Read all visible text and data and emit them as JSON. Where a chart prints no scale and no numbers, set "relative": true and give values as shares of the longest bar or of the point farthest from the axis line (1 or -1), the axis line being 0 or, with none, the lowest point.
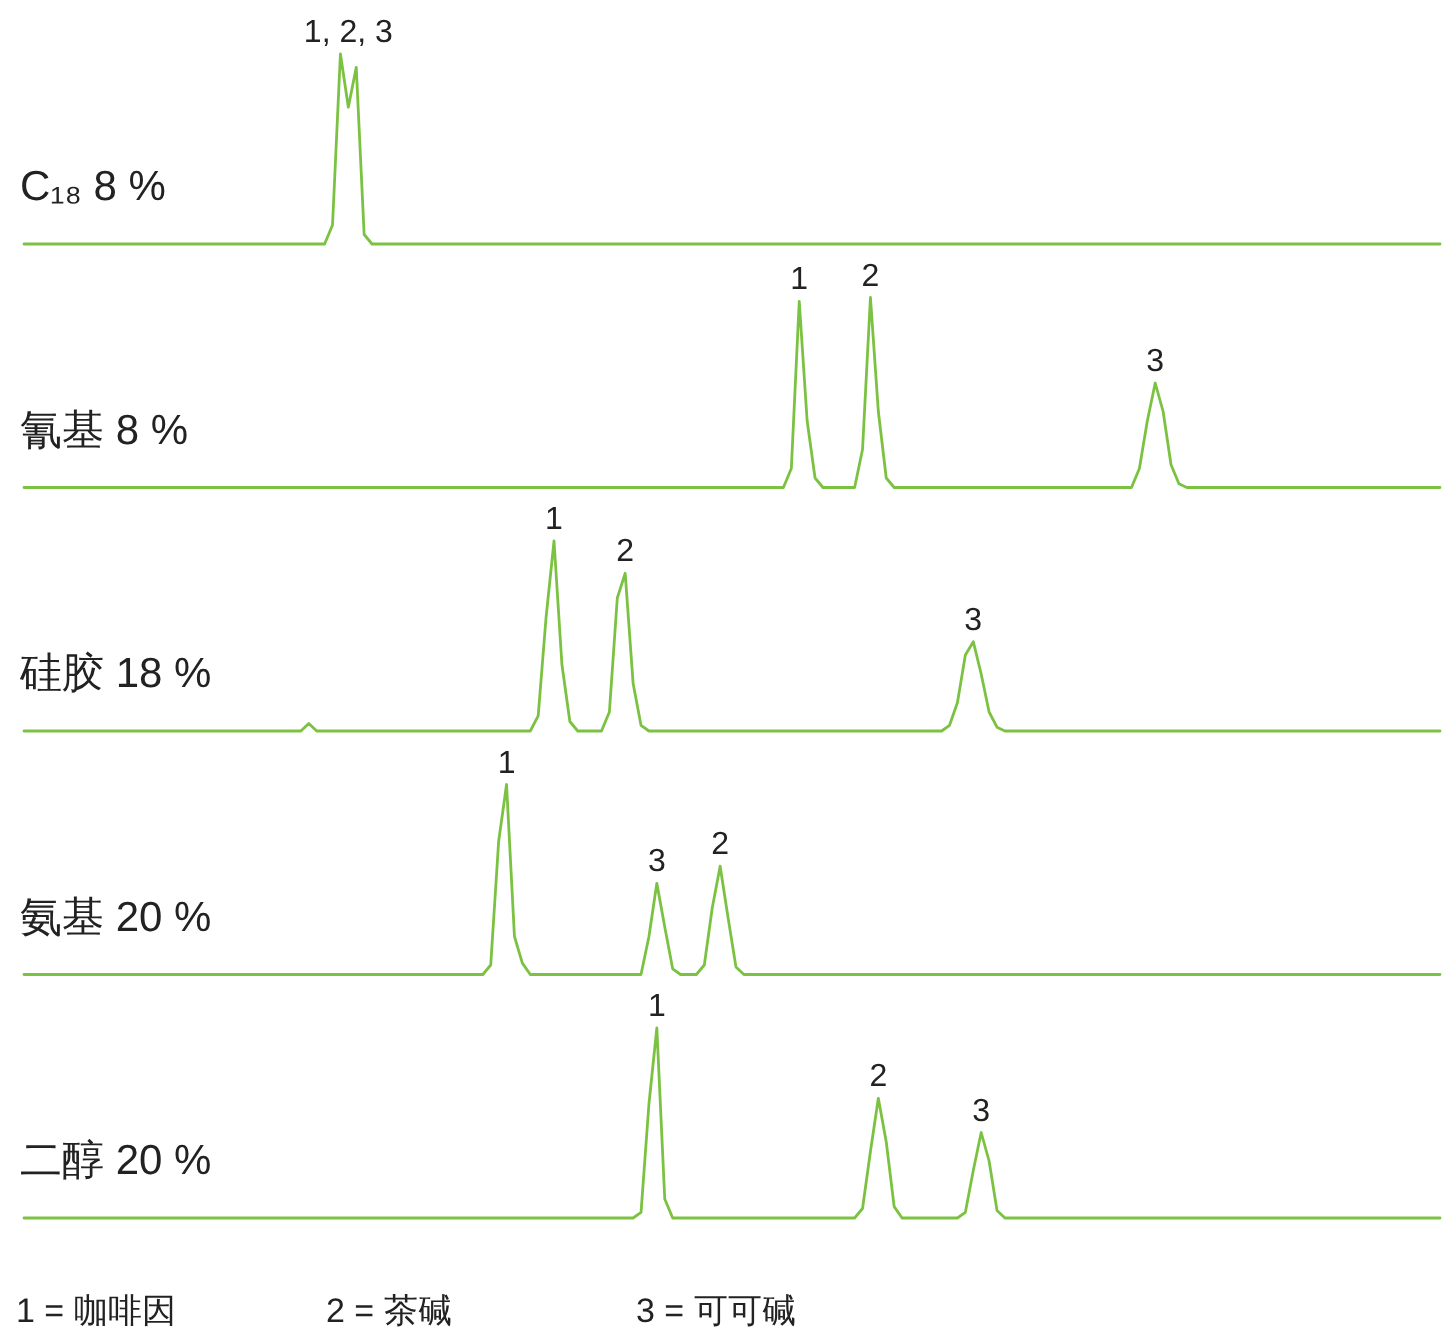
{
  "chart_data": [
    {
      "type": "line",
      "title": "C₁₈ 8 %",
      "relative": true,
      "color": "#7cc242",
      "annotations": [
        "1, 2, 3"
      ],
      "categories": [
        null,
        null,
        null,
        null,
        null,
        null,
        null,
        null,
        null,
        null,
        null,
        null,
        null,
        null,
        null,
        null,
        null,
        null,
        null,
        null,
        null,
        null,
        null,
        null,
        null,
        null,
        null,
        null,
        null,
        null,
        null,
        null,
        null,
        null,
        null,
        null,
        null,
        null,
        null,
        null,
        null,
        null,
        null,
        null,
        null,
        null,
        null,
        null,
        null,
        null,
        null,
        null,
        null,
        null,
        null,
        null,
        null,
        null,
        null,
        null,
        null,
        null,
        null,
        null,
        null,
        null,
        null,
        null,
        null,
        null,
        null,
        null,
        null,
        null,
        null,
        null,
        null,
        null,
        null,
        null,
        null,
        null,
        null,
        null,
        null,
        null,
        null,
        null,
        null,
        null,
        null,
        null,
        null,
        null,
        null,
        null,
        null,
        null,
        null,
        null,
        null,
        null,
        null,
        null,
        null,
        null,
        null,
        null,
        null,
        null,
        null,
        null,
        null,
        null,
        null,
        null,
        null,
        null,
        null,
        null,
        null,
        null,
        null,
        null,
        null,
        null,
        null,
        null,
        null,
        null,
        null,
        null,
        null,
        null,
        null,
        null,
        null,
        null,
        null,
        null,
        null,
        null,
        null,
        null,
        null,
        null,
        null,
        null,
        null,
        null,
        null,
        null,
        null,
        null,
        null,
        null,
        null,
        null,
        null,
        null,
        null,
        null,
        null,
        null,
        null,
        null,
        null,
        null,
        null,
        null,
        null,
        null,
        null,
        null,
        null,
        null,
        null,
        null,
        null,
        null
      ],
      "values": [
        0,
        0,
        0,
        0,
        0,
        0,
        0,
        0,
        0,
        0,
        0,
        0,
        0,
        0,
        0,
        0,
        0,
        0,
        0,
        0,
        0,
        0,
        0,
        0,
        0,
        0,
        0,
        0,
        0,
        0,
        0,
        0,
        0,
        0,
        0,
        0,
        0,
        0,
        0,
        0.1,
        1,
        0.72,
        0.93,
        0.05,
        0,
        0,
        0,
        0,
        0,
        0,
        0,
        0,
        0,
        0,
        0,
        0,
        0,
        0,
        0,
        0,
        0,
        0,
        0,
        0,
        0,
        0,
        0,
        0,
        0,
        0,
        0,
        0,
        0,
        0,
        0,
        0,
        0,
        0,
        0,
        0,
        0,
        0,
        0,
        0,
        0,
        0,
        0,
        0,
        0,
        0,
        0,
        0,
        0,
        0,
        0,
        0,
        0,
        0,
        0,
        0,
        0,
        0,
        0,
        0,
        0,
        0,
        0,
        0,
        0,
        0,
        0,
        0,
        0,
        0,
        0,
        0,
        0,
        0,
        0,
        0,
        0,
        0,
        0,
        0,
        0,
        0,
        0,
        0,
        0,
        0,
        0,
        0,
        0,
        0,
        0,
        0,
        0,
        0,
        0,
        0,
        0,
        0,
        0,
        0,
        0,
        0,
        0,
        0,
        0,
        0,
        0,
        0,
        0,
        0,
        0,
        0,
        0,
        0,
        0,
        0,
        0,
        0,
        0,
        0,
        0,
        0,
        0,
        0,
        0,
        0,
        0,
        0,
        0,
        0,
        0,
        0,
        0,
        0,
        0,
        0
      ]
    },
    {
      "type": "line",
      "title": "氰基 8 %",
      "relative": true,
      "color": "#7cc242",
      "annotations": [
        "1",
        "2",
        "3"
      ],
      "categories": [
        null,
        null,
        null,
        null,
        null,
        null,
        null,
        null,
        null,
        null,
        null,
        null,
        null,
        null,
        null,
        null,
        null,
        null,
        null,
        null,
        null,
        null,
        null,
        null,
        null,
        null,
        null,
        null,
        null,
        null,
        null,
        null,
        null,
        null,
        null,
        null,
        null,
        null,
        null,
        null,
        null,
        null,
        null,
        null,
        null,
        null,
        null,
        null,
        null,
        null,
        null,
        null,
        null,
        null,
        null,
        null,
        null,
        null,
        null,
        null,
        null,
        null,
        null,
        null,
        null,
        null,
        null,
        null,
        null,
        null,
        null,
        null,
        null,
        null,
        null,
        null,
        null,
        null,
        null,
        null,
        null,
        null,
        null,
        null,
        null,
        null,
        null,
        null,
        null,
        null,
        null,
        null,
        null,
        null,
        null,
        null,
        null,
        null,
        null,
        null,
        null,
        null,
        null,
        null,
        null,
        null,
        null,
        null,
        null,
        null,
        null,
        null,
        null,
        null,
        null,
        null,
        null,
        null,
        null,
        null,
        null,
        null,
        null,
        null,
        null,
        null,
        null,
        null,
        null,
        null,
        null,
        null,
        null,
        null,
        null,
        null,
        null,
        null,
        null,
        null,
        null,
        null,
        null,
        null,
        null,
        null,
        null,
        null,
        null,
        null,
        null,
        null,
        null,
        null,
        null,
        null,
        null,
        null,
        null,
        null,
        null,
        null,
        null,
        null,
        null,
        null,
        null,
        null,
        null,
        null,
        null,
        null,
        null,
        null,
        null,
        null,
        null,
        null,
        null,
        null
      ],
      "values": [
        0,
        0,
        0,
        0,
        0,
        0,
        0,
        0,
        0,
        0,
        0,
        0,
        0,
        0,
        0,
        0,
        0,
        0,
        0,
        0,
        0,
        0,
        0,
        0,
        0,
        0,
        0,
        0,
        0,
        0,
        0,
        0,
        0,
        0,
        0,
        0,
        0,
        0,
        0,
        0,
        0,
        0,
        0,
        0,
        0,
        0,
        0,
        0,
        0,
        0,
        0,
        0,
        0,
        0,
        0,
        0,
        0,
        0,
        0,
        0,
        0,
        0,
        0,
        0,
        0,
        0,
        0,
        0,
        0,
        0,
        0,
        0,
        0,
        0,
        0,
        0,
        0,
        0,
        0,
        0,
        0,
        0,
        0,
        0,
        0,
        0,
        0,
        0,
        0,
        0,
        0,
        0,
        0,
        0,
        0,
        0,
        0,
        0.1,
        0.98,
        0.35,
        0.05,
        0,
        0,
        0,
        0,
        0,
        0.2,
        1,
        0.4,
        0.05,
        0,
        0,
        0,
        0,
        0,
        0,
        0,
        0,
        0,
        0,
        0,
        0,
        0,
        0,
        0,
        0,
        0,
        0,
        0,
        0,
        0,
        0,
        0,
        0,
        0,
        0,
        0,
        0,
        0,
        0,
        0,
        0.1,
        0.35,
        0.55,
        0.4,
        0.12,
        0.02,
        0,
        0,
        0,
        0,
        0,
        0,
        0,
        0,
        0,
        0,
        0,
        0,
        0,
        0,
        0,
        0,
        0,
        0,
        0,
        0,
        0,
        0,
        0,
        0,
        0,
        0,
        0,
        0,
        0,
        0,
        0,
        0,
        0
      ]
    },
    {
      "type": "line",
      "title": "硅胶 18 %",
      "relative": true,
      "color": "#7cc242",
      "annotations": [
        "1",
        "2",
        "3"
      ],
      "categories": [
        null,
        null,
        null,
        null,
        null,
        null,
        null,
        null,
        null,
        null,
        null,
        null,
        null,
        null,
        null,
        null,
        null,
        null,
        null,
        null,
        null,
        null,
        null,
        null,
        null,
        null,
        null,
        null,
        null,
        null,
        null,
        null,
        null,
        null,
        null,
        null,
        null,
        null,
        null,
        null,
        null,
        null,
        null,
        null,
        null,
        null,
        null,
        null,
        null,
        null,
        null,
        null,
        null,
        null,
        null,
        null,
        null,
        null,
        null,
        null,
        null,
        null,
        null,
        null,
        null,
        null,
        null,
        null,
        null,
        null,
        null,
        null,
        null,
        null,
        null,
        null,
        null,
        null,
        null,
        null,
        null,
        null,
        null,
        null,
        null,
        null,
        null,
        null,
        null,
        null,
        null,
        null,
        null,
        null,
        null,
        null,
        null,
        null,
        null,
        null,
        null,
        null,
        null,
        null,
        null,
        null,
        null,
        null,
        null,
        null,
        null,
        null,
        null,
        null,
        null,
        null,
        null,
        null,
        null,
        null,
        null,
        null,
        null,
        null,
        null,
        null,
        null,
        null,
        null,
        null,
        null,
        null,
        null,
        null,
        null,
        null,
        null,
        null,
        null,
        null,
        null,
        null,
        null,
        null,
        null,
        null,
        null,
        null,
        null,
        null,
        null,
        null,
        null,
        null,
        null,
        null,
        null,
        null,
        null,
        null,
        null,
        null,
        null,
        null,
        null,
        null,
        null,
        null,
        null,
        null,
        null,
        null,
        null,
        null,
        null,
        null,
        null,
        null,
        null,
        null
      ],
      "values": [
        0,
        0,
        0,
        0,
        0,
        0,
        0,
        0,
        0,
        0,
        0,
        0,
        0,
        0,
        0,
        0,
        0,
        0,
        0,
        0,
        0,
        0,
        0,
        0,
        0,
        0,
        0,
        0,
        0,
        0,
        0,
        0,
        0,
        0,
        0,
        0,
        0.04,
        0,
        0,
        0,
        0,
        0,
        0,
        0,
        0,
        0,
        0,
        0,
        0,
        0,
        0,
        0,
        0,
        0,
        0,
        0,
        0,
        0,
        0,
        0,
        0,
        0,
        0,
        0,
        0,
        0.08,
        0.6,
        1,
        0.35,
        0.05,
        0,
        0,
        0,
        0,
        0.1,
        0.7,
        0.83,
        0.25,
        0.03,
        0,
        0,
        0,
        0,
        0,
        0,
        0,
        0,
        0,
        0,
        0,
        0,
        0,
        0,
        0,
        0,
        0,
        0,
        0,
        0,
        0,
        0,
        0,
        0,
        0,
        0,
        0,
        0,
        0,
        0,
        0,
        0,
        0,
        0,
        0,
        0,
        0,
        0,
        0.03,
        0.15,
        0.4,
        0.47,
        0.3,
        0.1,
        0.02,
        0,
        0,
        0,
        0,
        0,
        0,
        0,
        0,
        0,
        0,
        0,
        0,
        0,
        0,
        0,
        0,
        0,
        0,
        0,
        0,
        0,
        0,
        0,
        0,
        0,
        0,
        0,
        0,
        0,
        0,
        0,
        0,
        0,
        0,
        0,
        0,
        0,
        0,
        0,
        0,
        0,
        0,
        0,
        0,
        0,
        0,
        0,
        0,
        0,
        0,
        0,
        0,
        0,
        0,
        0,
        0
      ]
    },
    {
      "type": "line",
      "title": "氨基 20 %",
      "relative": true,
      "color": "#7cc242",
      "annotations": [
        "1",
        "3",
        "2"
      ],
      "categories": [
        null,
        null,
        null,
        null,
        null,
        null,
        null,
        null,
        null,
        null,
        null,
        null,
        null,
        null,
        null,
        null,
        null,
        null,
        null,
        null,
        null,
        null,
        null,
        null,
        null,
        null,
        null,
        null,
        null,
        null,
        null,
        null,
        null,
        null,
        null,
        null,
        null,
        null,
        null,
        null,
        null,
        null,
        null,
        null,
        null,
        null,
        null,
        null,
        null,
        null,
        null,
        null,
        null,
        null,
        null,
        null,
        null,
        null,
        null,
        null,
        null,
        null,
        null,
        null,
        null,
        null,
        null,
        null,
        null,
        null,
        null,
        null,
        null,
        null,
        null,
        null,
        null,
        null,
        null,
        null,
        null,
        null,
        null,
        null,
        null,
        null,
        null,
        null,
        null,
        null,
        null,
        null,
        null,
        null,
        null,
        null,
        null,
        null,
        null,
        null,
        null,
        null,
        null,
        null,
        null,
        null,
        null,
        null,
        null,
        null,
        null,
        null,
        null,
        null,
        null,
        null,
        null,
        null,
        null,
        null,
        null,
        null,
        null,
        null,
        null,
        null,
        null,
        null,
        null,
        null,
        null,
        null,
        null,
        null,
        null,
        null,
        null,
        null,
        null,
        null,
        null,
        null,
        null,
        null,
        null,
        null,
        null,
        null,
        null,
        null,
        null,
        null,
        null,
        null,
        null,
        null,
        null,
        null,
        null,
        null,
        null,
        null,
        null,
        null,
        null,
        null,
        null,
        null,
        null,
        null,
        null,
        null,
        null,
        null,
        null,
        null,
        null,
        null,
        null,
        null
      ],
      "values": [
        0,
        0,
        0,
        0,
        0,
        0,
        0,
        0,
        0,
        0,
        0,
        0,
        0,
        0,
        0,
        0,
        0,
        0,
        0,
        0,
        0,
        0,
        0,
        0,
        0,
        0,
        0,
        0,
        0,
        0,
        0,
        0,
        0,
        0,
        0,
        0,
        0,
        0,
        0,
        0,
        0,
        0,
        0,
        0,
        0,
        0,
        0,
        0,
        0,
        0,
        0,
        0,
        0,
        0,
        0,
        0,
        0,
        0,
        0,
        0.05,
        0.7,
        1,
        0.2,
        0.06,
        0,
        0,
        0,
        0,
        0,
        0,
        0,
        0,
        0,
        0,
        0,
        0,
        0,
        0,
        0,
        0.2,
        0.48,
        0.25,
        0.03,
        0,
        0,
        0,
        0.05,
        0.35,
        0.57,
        0.3,
        0.04,
        0,
        0,
        0,
        0,
        0,
        0,
        0,
        0,
        0,
        0,
        0,
        0,
        0,
        0,
        0,
        0,
        0,
        0,
        0,
        0,
        0,
        0,
        0,
        0,
        0,
        0,
        0,
        0,
        0,
        0,
        0,
        0,
        0,
        0,
        0,
        0,
        0,
        0,
        0,
        0,
        0,
        0,
        0,
        0,
        0,
        0,
        0,
        0,
        0,
        0,
        0,
        0,
        0,
        0,
        0,
        0,
        0,
        0,
        0,
        0,
        0,
        0,
        0,
        0,
        0,
        0,
        0,
        0,
        0,
        0,
        0,
        0,
        0,
        0,
        0,
        0,
        0,
        0,
        0,
        0,
        0,
        0,
        0,
        0,
        0,
        0,
        0,
        0,
        0
      ]
    },
    {
      "type": "line",
      "title": "二醇 20 %",
      "relative": true,
      "color": "#7cc242",
      "annotations": [
        "1",
        "2",
        "3",
        "1 = 咖啡因",
        "2 = 茶碱",
        "3 = 可可碱"
      ],
      "categories": [
        null,
        null,
        null,
        null,
        null,
        null,
        null,
        null,
        null,
        null,
        null,
        null,
        null,
        null,
        null,
        null,
        null,
        null,
        null,
        null,
        null,
        null,
        null,
        null,
        null,
        null,
        null,
        null,
        null,
        null,
        null,
        null,
        null,
        null,
        null,
        null,
        null,
        null,
        null,
        null,
        null,
        null,
        null,
        null,
        null,
        null,
        null,
        null,
        null,
        null,
        null,
        null,
        null,
        null,
        null,
        null,
        null,
        null,
        null,
        null,
        null,
        null,
        null,
        null,
        null,
        null,
        null,
        null,
        null,
        null,
        null,
        null,
        null,
        null,
        null,
        null,
        null,
        null,
        null,
        null,
        null,
        null,
        null,
        null,
        null,
        null,
        null,
        null,
        null,
        null,
        null,
        null,
        null,
        null,
        null,
        null,
        null,
        null,
        null,
        null,
        null,
        null,
        null,
        null,
        null,
        null,
        null,
        null,
        null,
        null,
        null,
        null,
        null,
        null,
        null,
        null,
        null,
        null,
        null,
        null,
        null,
        null,
        null,
        null,
        null,
        null,
        null,
        null,
        null,
        null,
        null,
        null,
        null,
        null,
        null,
        null,
        null,
        null,
        null,
        null,
        null,
        null,
        null,
        null,
        null,
        null,
        null,
        null,
        null,
        null,
        null,
        null,
        null,
        null,
        null,
        null,
        null,
        null,
        null,
        null,
        null,
        null,
        null,
        null,
        null,
        null,
        null,
        null,
        null,
        null,
        null,
        null,
        null,
        null,
        null,
        null,
        null,
        null,
        null,
        null
      ],
      "values": [
        0,
        0,
        0,
        0,
        0,
        0,
        0,
        0,
        0,
        0,
        0,
        0,
        0,
        0,
        0,
        0,
        0,
        0,
        0,
        0,
        0,
        0,
        0,
        0,
        0,
        0,
        0,
        0,
        0,
        0,
        0,
        0,
        0,
        0,
        0,
        0,
        0,
        0,
        0,
        0,
        0,
        0,
        0,
        0,
        0,
        0,
        0,
        0,
        0,
        0,
        0,
        0,
        0,
        0,
        0,
        0,
        0,
        0,
        0,
        0,
        0,
        0,
        0,
        0,
        0,
        0,
        0,
        0,
        0,
        0,
        0,
        0,
        0,
        0,
        0,
        0,
        0,
        0,
        0.03,
        0.6,
        1,
        0.1,
        0,
        0,
        0,
        0,
        0,
        0,
        0,
        0,
        0,
        0,
        0,
        0,
        0,
        0,
        0,
        0,
        0,
        0,
        0,
        0,
        0,
        0,
        0,
        0,
        0.05,
        0.35,
        0.63,
        0.4,
        0.06,
        0,
        0,
        0,
        0,
        0,
        0,
        0,
        0,
        0.03,
        0.25,
        0.45,
        0.3,
        0.04,
        0,
        0,
        0,
        0,
        0,
        0,
        0,
        0,
        0,
        0,
        0,
        0,
        0,
        0,
        0,
        0,
        0,
        0,
        0,
        0,
        0,
        0,
        0,
        0,
        0,
        0,
        0,
        0,
        0,
        0,
        0,
        0,
        0,
        0,
        0,
        0,
        0,
        0,
        0,
        0,
        0,
        0,
        0,
        0,
        0,
        0,
        0,
        0,
        0,
        0,
        0,
        0,
        0,
        0,
        0,
        0
      ]
    }
  ]
}
